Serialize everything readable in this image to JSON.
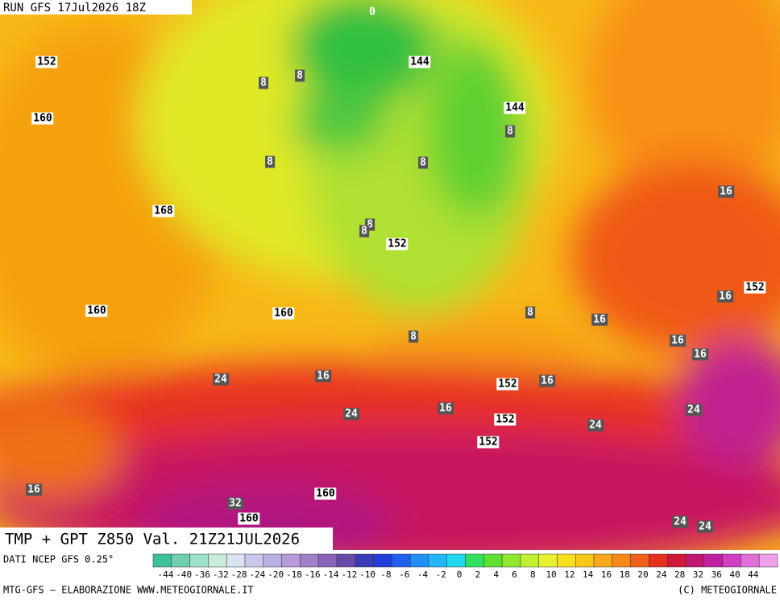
{
  "header": {
    "run": "RUN GFS 17Jul2026 18Z"
  },
  "map": {
    "geopotential_labels": [
      "152",
      "160",
      "168",
      "160",
      "160",
      "144",
      "144",
      "152",
      "152",
      "152",
      "152",
      "152",
      "160",
      "160"
    ],
    "temperature_labels": [
      "0",
      "8",
      "8",
      "8",
      "8",
      "8",
      "8",
      "8",
      "8",
      "8",
      "16",
      "16",
      "16",
      "16",
      "16",
      "16",
      "16",
      "16",
      "24",
      "24",
      "24",
      "24",
      "24",
      "24",
      "16",
      "32"
    ]
  },
  "footer": {
    "title": "TMP + GPT Z850 Val. 21Z21JUL2026",
    "source": "DATI NCEP GFS 0.25°",
    "credit": "MTG-GFS — ELABORAZIONE WWW.METEOGIORNALE.IT",
    "copyright": "(C) METEOGIORNALE"
  },
  "legend": {
    "labels": [
      "-44",
      "-40",
      "-36",
      "-32",
      "-28",
      "-24",
      "-20",
      "-18",
      "-16",
      "-14",
      "-12",
      "-10",
      "-8",
      "-6",
      "-4",
      "-2",
      "0",
      "2",
      "4",
      "6",
      "8",
      "10",
      "12",
      "14",
      "16",
      "18",
      "20",
      "24",
      "28",
      "32",
      "36",
      "40",
      "44"
    ],
    "colors": [
      "#3fbf9a",
      "#6fd0b0",
      "#9fe0c8",
      "#c8ecd8",
      "#d8e4f2",
      "#c8c8ec",
      "#b8b0e0",
      "#b89ad8",
      "#a080c8",
      "#8a64b8",
      "#6a4aa8",
      "#3a3ab8",
      "#1f3fd8",
      "#2060f0",
      "#2090f8",
      "#20b8f8",
      "#20d8f0",
      "#30e060",
      "#60e030",
      "#90e830",
      "#c0f030",
      "#e8f030",
      "#f8e020",
      "#f8c818",
      "#f8a818",
      "#f88818",
      "#f06018",
      "#e83020",
      "#d01838",
      "#c01870",
      "#c020a0",
      "#d040c0",
      "#e070d8",
      "#f0a0e8"
    ]
  }
}
